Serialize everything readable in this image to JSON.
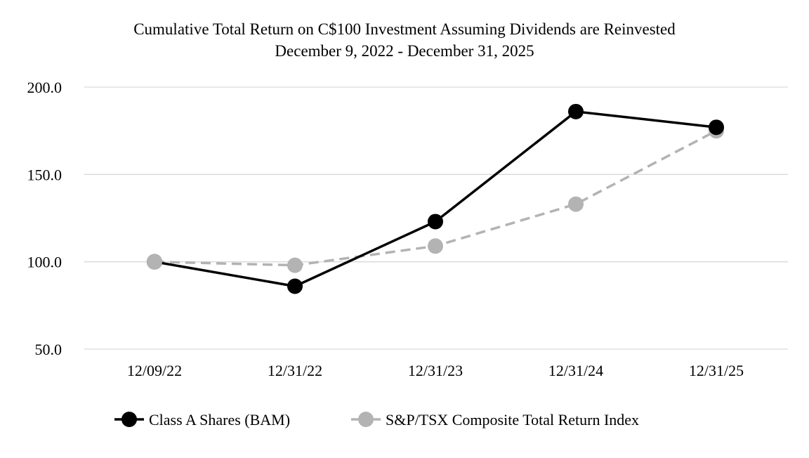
{
  "chart_data": {
    "type": "line",
    "title": "Cumulative Total Return on C$100 Investment Assuming Dividends are Reinvested",
    "subtitle": "December 9, 2022 - December 31, 2025",
    "categories": [
      "12/09/22",
      "12/31/22",
      "12/31/23",
      "12/31/24",
      "12/31/25"
    ],
    "yticks": [
      "50.0",
      "100.0",
      "150.0",
      "200.0"
    ],
    "ylim": [
      50,
      200
    ],
    "xlabel": "",
    "ylabel": "",
    "grid": true,
    "legend_position": "bottom",
    "series": [
      {
        "name": "Class A Shares (BAM)",
        "values": [
          100.0,
          86.0,
          123.0,
          186.0,
          177.0
        ],
        "color": "#000000",
        "style": "solid"
      },
      {
        "name": "S&P/TSX Composite Total Return Index",
        "values": [
          100.0,
          98.0,
          109.0,
          133.0,
          175.0
        ],
        "color": "#b3b3b3",
        "style": "dashed"
      }
    ]
  }
}
